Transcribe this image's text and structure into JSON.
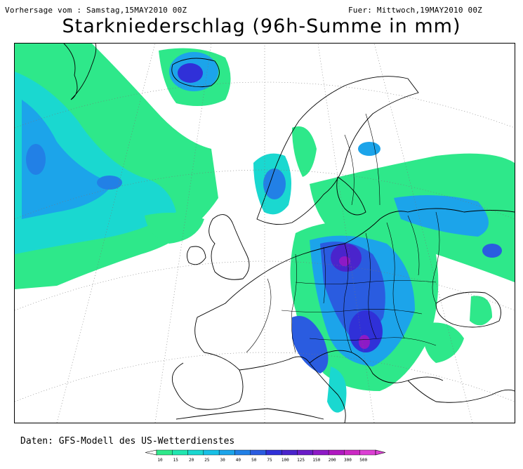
{
  "header": {
    "issued": "Vorhersage vom : Samstag,15MAY2010 00Z",
    "valid": "Fuer: Mittwoch,19MAY2010 00Z"
  },
  "title": "Starkniederschlag (96h-Summe in mm)",
  "source": "Daten: GFS-Modell des US-Wetterdienstes",
  "legend": {
    "unit": "mm",
    "thresholds": [
      "10",
      "15",
      "20",
      "25",
      "30",
      "40",
      "50",
      "75",
      "100",
      "125",
      "150",
      "200",
      "300",
      "500"
    ],
    "colors": [
      "#2ee88a",
      "#22e6b0",
      "#1ad8d0",
      "#18c0e6",
      "#1ca4ea",
      "#2280e6",
      "#2a5ce0",
      "#3030d8",
      "#4a24cc",
      "#6a1cc8",
      "#8e1ac6",
      "#b018c0",
      "#cc28c4",
      "#dc40d4"
    ]
  },
  "map": {
    "region": "Europe / North Atlantic",
    "colors": {
      "c10": "#2ee88a",
      "c20": "#1ad8d0",
      "c30": "#1ca4ea",
      "c50": "#2a5ce0",
      "c75": "#3030d8",
      "c100": "#4a24cc",
      "c150": "#8e1ac6"
    }
  }
}
